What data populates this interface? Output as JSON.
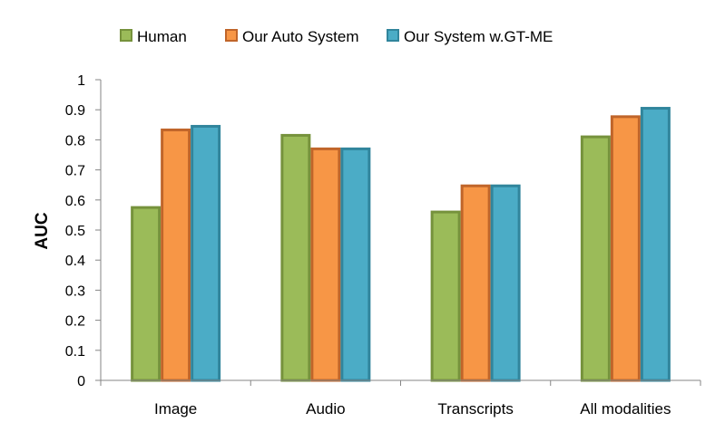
{
  "chart_data": {
    "type": "bar",
    "title": "",
    "xlabel": "",
    "ylabel": "AUC",
    "ylim": [
      0,
      1
    ],
    "yticks": [
      "0",
      "0.1",
      "0.2",
      "0.3",
      "0.4",
      "0.5",
      "0.6",
      "0.7",
      "0.8",
      "0.9",
      "1"
    ],
    "categories": [
      "Image",
      "Audio",
      "Transcripts",
      "All modalities"
    ],
    "legend_position": "top",
    "grid": false,
    "series": [
      {
        "name": "Human",
        "values": [
          0.575,
          0.815,
          0.56,
          0.81
        ],
        "color": "#9bbb59",
        "edge": "#76923c"
      },
      {
        "name": "Our Auto System",
        "values": [
          0.833,
          0.77,
          0.647,
          0.877
        ],
        "color": "#f79646",
        "edge": "#c0652a"
      },
      {
        "name": "Our System w.GT-ME",
        "values": [
          0.845,
          0.77,
          0.647,
          0.905
        ],
        "color": "#4bacc6",
        "edge": "#31859c"
      }
    ]
  }
}
